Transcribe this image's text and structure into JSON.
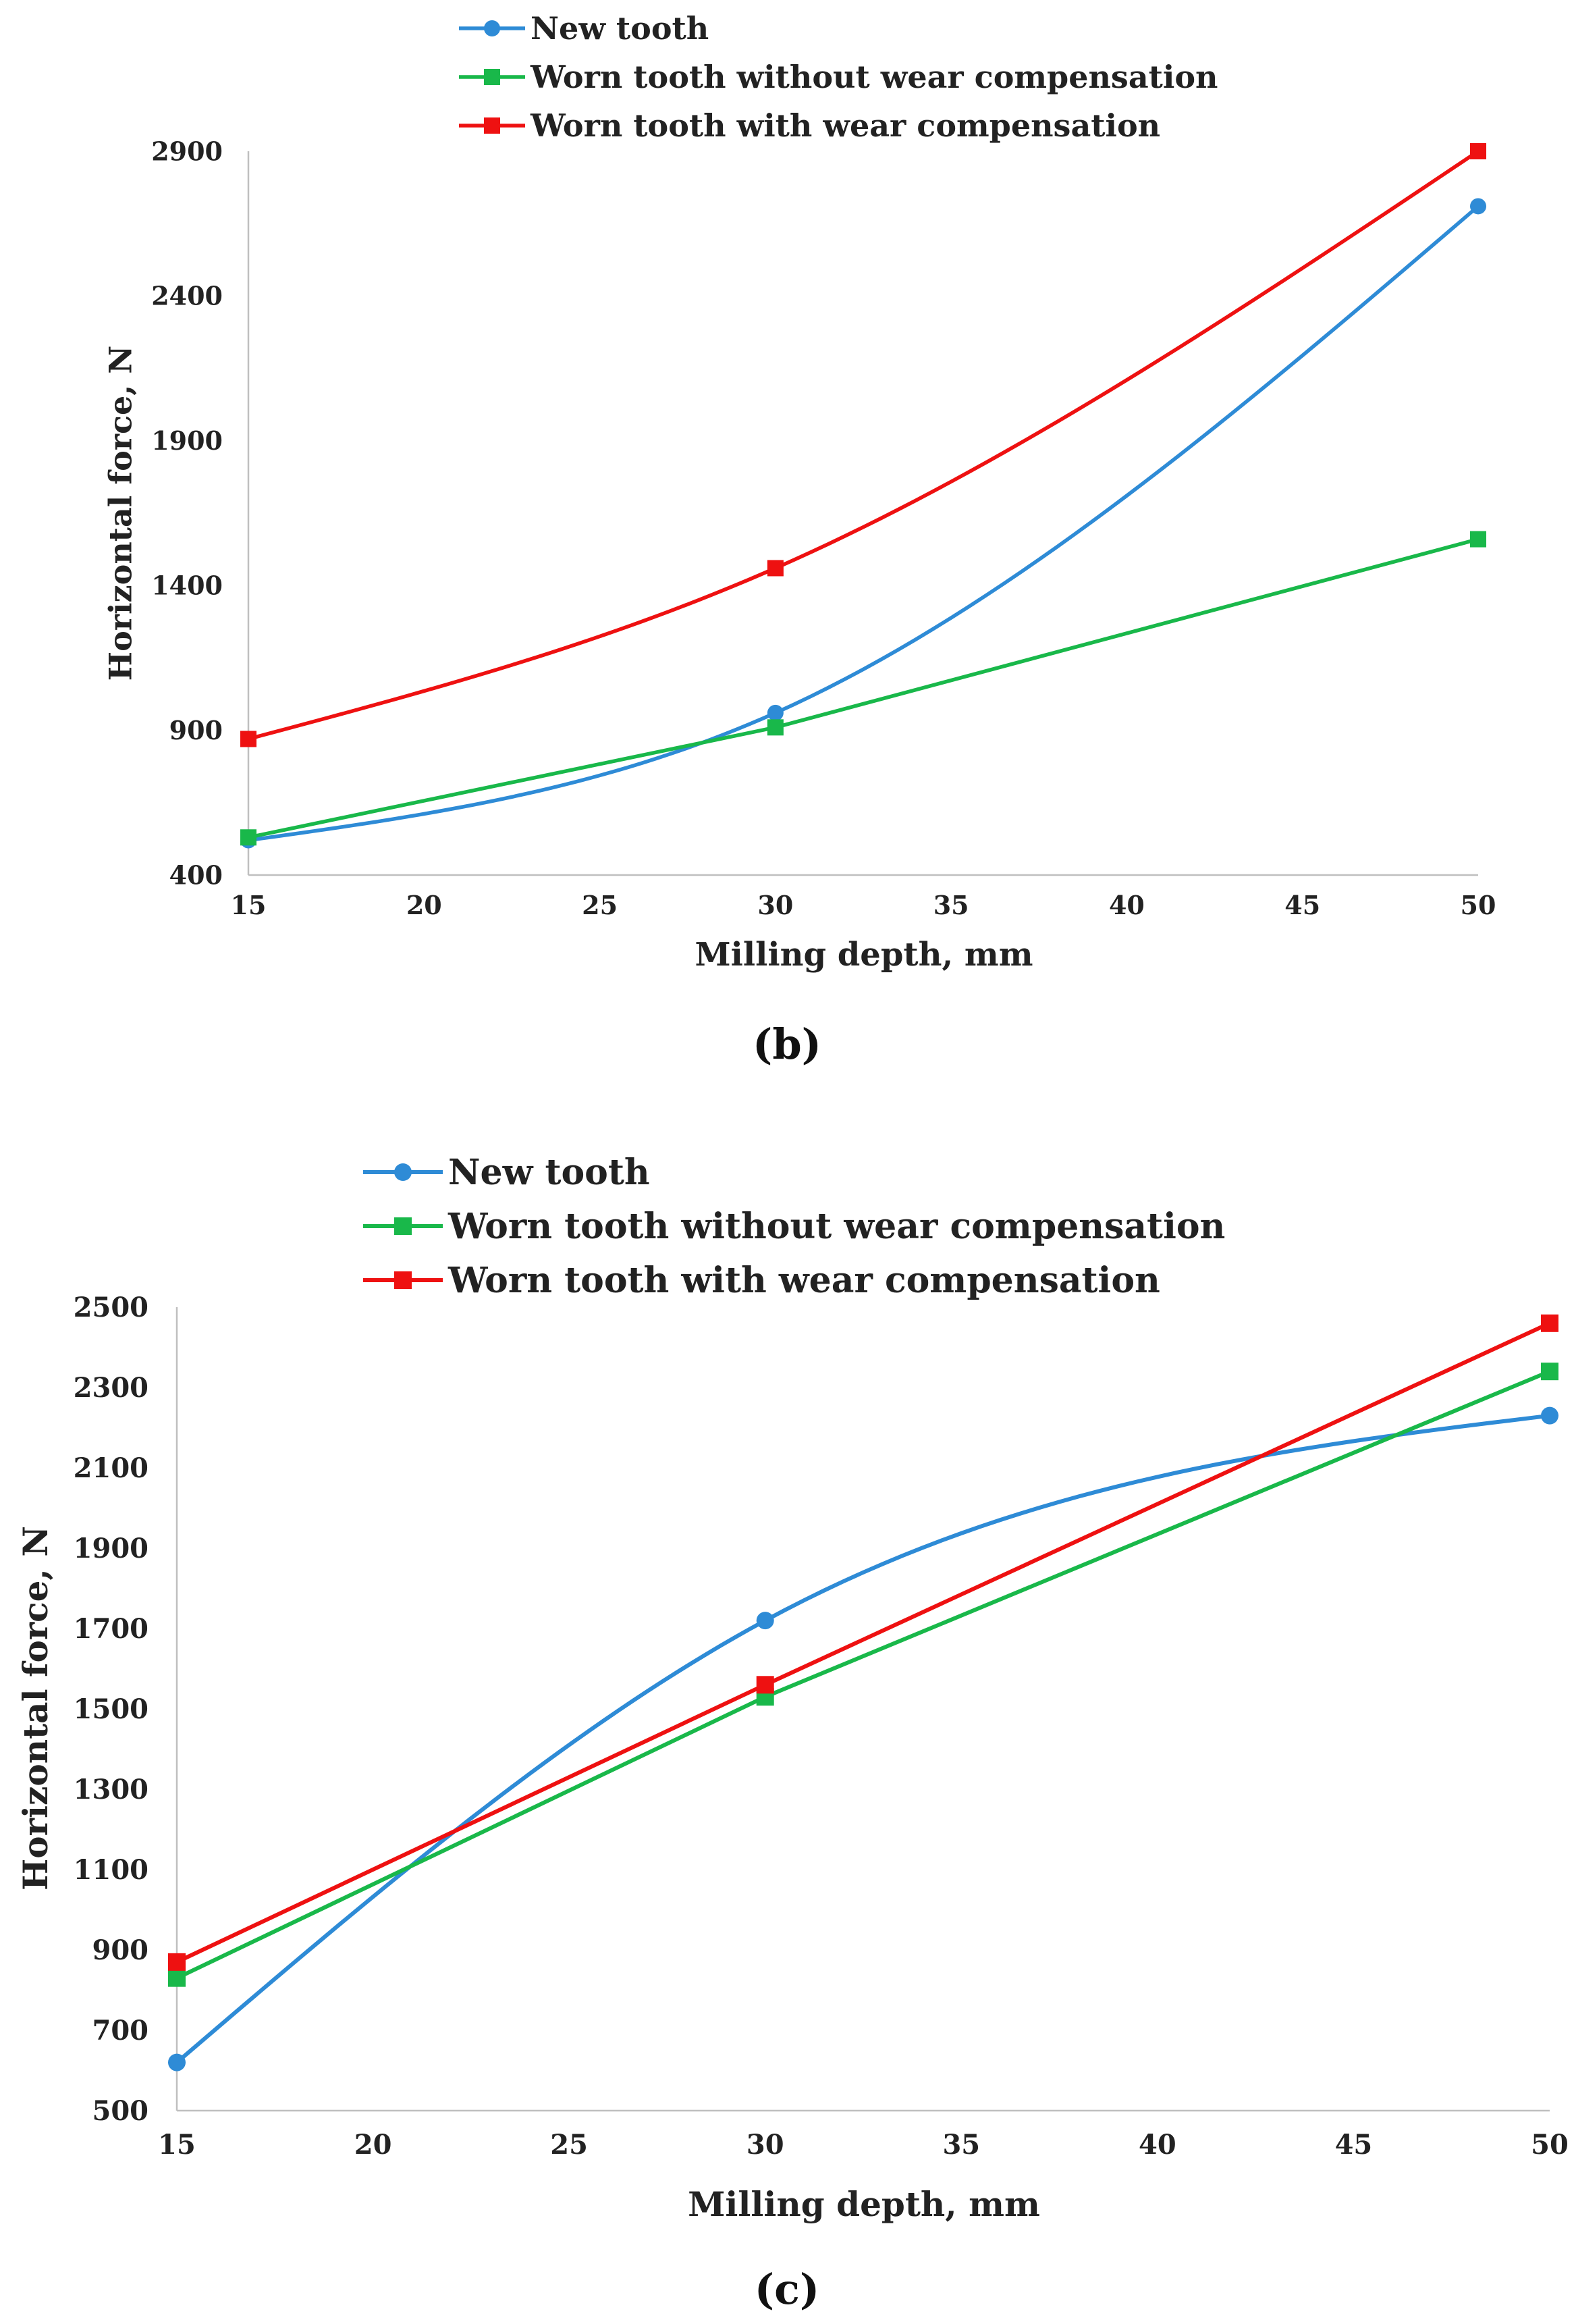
{
  "colors": {
    "new_tooth": "#2E8BD6",
    "worn_no_comp": "#19B84A",
    "worn_comp": "#EE1111",
    "axis": "#BFBFBF"
  },
  "chart_data": [
    {
      "type": "line",
      "panel": "(b)",
      "xlabel": "Milling depth, mm",
      "ylabel": "Horizontal force, N",
      "xlim": [
        15,
        50
      ],
      "ylim": [
        400,
        2900
      ],
      "xticks": [
        15,
        20,
        25,
        30,
        35,
        40,
        45,
        50
      ],
      "yticks": [
        400,
        900,
        1400,
        1900,
        2400,
        2900
      ],
      "x": [
        15,
        30,
        50
      ],
      "series": [
        {
          "name": "New tooth",
          "values": [
            520,
            960,
            2710
          ],
          "marker": "circle",
          "smooth": true,
          "color_key": "new_tooth"
        },
        {
          "name": "Worn tooth without wear compensation",
          "values": [
            530,
            910,
            1560
          ],
          "marker": "square",
          "smooth": false,
          "color_key": "worn_no_comp"
        },
        {
          "name": "Worn tooth with wear compensation",
          "values": [
            870,
            1460,
            2900
          ],
          "marker": "square",
          "smooth": true,
          "color_key": "worn_comp"
        }
      ]
    },
    {
      "type": "line",
      "panel": "(c)",
      "xlabel": "Milling depth, mm",
      "ylabel": "Horizontal force, N",
      "xlim": [
        15,
        50
      ],
      "ylim": [
        500,
        2500
      ],
      "xticks": [
        15,
        20,
        25,
        30,
        35,
        40,
        45,
        50
      ],
      "yticks": [
        500,
        700,
        900,
        1100,
        1300,
        1500,
        1700,
        1900,
        2100,
        2300,
        2500
      ],
      "x": [
        15,
        30,
        50
      ],
      "series": [
        {
          "name": "New tooth",
          "values": [
            620,
            1720,
            2230
          ],
          "marker": "circle",
          "smooth": true,
          "color_key": "new_tooth"
        },
        {
          "name": "Worn tooth without wear compensation",
          "values": [
            830,
            1530,
            2340
          ],
          "marker": "square",
          "smooth": false,
          "color_key": "worn_no_comp"
        },
        {
          "name": "Worn tooth with wear compensation",
          "values": [
            870,
            1560,
            2460
          ],
          "marker": "square",
          "smooth": false,
          "color_key": "worn_comp"
        }
      ]
    }
  ]
}
